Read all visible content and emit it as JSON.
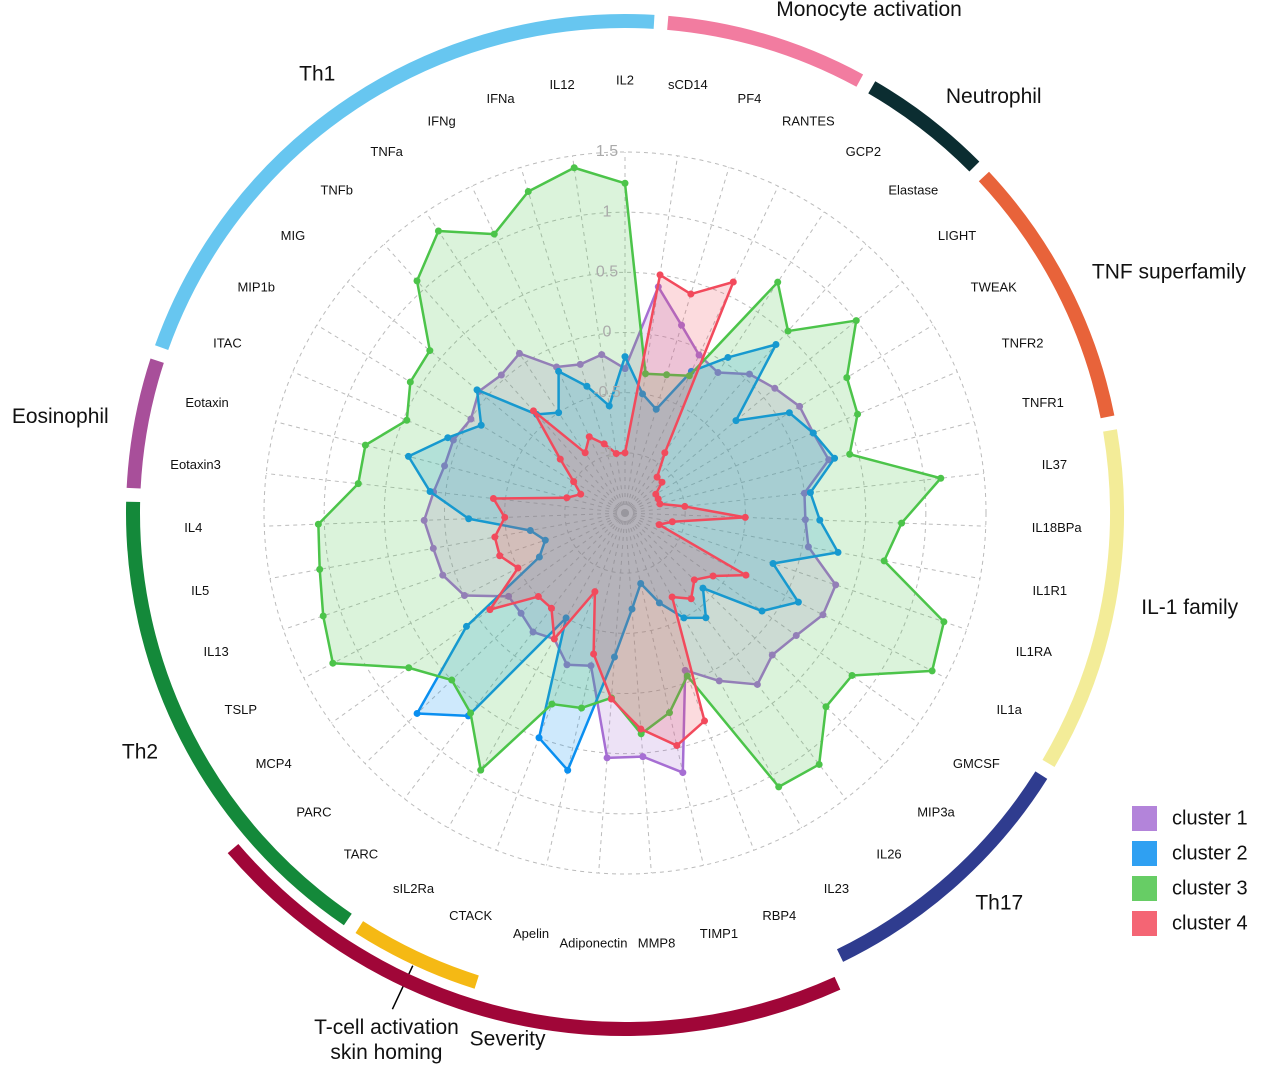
{
  "chart_data": {
    "type": "radar",
    "categories": [
      "IL2",
      "sCD14",
      "PF4",
      "RANTES",
      "GCP2",
      "Elastase",
      "LIGHT",
      "TWEAK",
      "TNFR2",
      "TNFR1",
      "IL37",
      "IL18BPa",
      "IL1R1",
      "IL1RA",
      "IL1a",
      "GMCSF",
      "MIP3a",
      "IL26",
      "IL23",
      "RBP4",
      "TIMP1",
      "MMP8",
      "Adiponectin",
      "Apelin",
      "CTACK",
      "sIL2Ra",
      "TARC",
      "PARC",
      "MCP4",
      "TSLP",
      "IL13",
      "IL5",
      "IL4",
      "Eotaxin3",
      "Eotaxin",
      "ITAC",
      "MIP1b",
      "MIG",
      "TNFb",
      "TNFa",
      "IFNg",
      "IFNa",
      "IL12"
    ],
    "series": [
      {
        "name": "cluster 1",
        "color": "#a66ed3",
        "values": [
          -0.3,
          0.4,
          0.13,
          -0.05,
          -0.1,
          0.05,
          0.12,
          0.2,
          0.2,
          0.25,
          0.0,
          0.0,
          0.05,
          0.35,
          0.35,
          0.25,
          0.2,
          0.3,
          0.1,
          -0.1,
          0.71,
          0.53,
          0.54,
          -0.2,
          -0.15,
          -0.3,
          -0.25,
          -0.3,
          -0.31,
          0.0,
          0.1,
          0.12,
          0.17,
          0.1,
          0.05,
          0.05,
          0.0,
          0.08,
          0.04,
          0.09,
          -0.16,
          -0.21,
          -0.17
        ]
      },
      {
        "name": "cluster 2",
        "color": "#0a8ff0",
        "values": [
          -0.2,
          -0.5,
          -0.6,
          -0.2,
          0.05,
          0.38,
          -0.3,
          0.1,
          0.2,
          0.3,
          0.05,
          0.12,
          0.3,
          -0.2,
          0.12,
          -0.1,
          -0.6,
          -0.4,
          -0.5,
          -0.7,
          -0.9,
          -0.7,
          -0.3,
          0.69,
          0.5,
          -0.5,
          0.63,
          0.9,
          0.12,
          -0.7,
          -0.8,
          -0.7,
          -0.2,
          0.13,
          0.36,
          0.1,
          -0.1,
          0.1,
          -0.4,
          -0.5,
          -0.2,
          -0.4,
          -0.6
        ]
      },
      {
        "name": "cluster 3",
        "color": "#4cc44a",
        "values": [
          1.24,
          -0.33,
          -0.3,
          -0.24,
          0.8,
          0.53,
          1.0,
          0.66,
          0.6,
          0.43,
          1.14,
          0.8,
          0.69,
          1.3,
          1.37,
          0.82,
          0.82,
          1.14,
          1.11,
          -0.05,
          0.2,
          0.34,
          0.04,
          0.16,
          0.2,
          0.95,
          0.6,
          0.5,
          0.71,
          1.23,
          1.15,
          1.08,
          1.05,
          0.73,
          0.73,
          0.47,
          0.59,
          0.61,
          1.09,
          1.31,
          1.06,
          1.29,
          1.4
        ]
      },
      {
        "name": "cluster 4",
        "color": "#f24a5c",
        "values": [
          -1.0,
          0.5,
          0.4,
          0.62,
          -0.9,
          -1.1,
          -1.1,
          -1.2,
          -1.2,
          -1.2,
          -1.0,
          -0.5,
          -1.1,
          -1.2,
          -0.37,
          -0.6,
          -0.7,
          -0.6,
          -0.7,
          0.35,
          0.48,
          0.3,
          0.05,
          -0.3,
          -0.8,
          -0.3,
          -0.5,
          -0.5,
          -0.12,
          -0.5,
          -0.4,
          -0.4,
          -0.5,
          -0.4,
          -1.0,
          -1.1,
          -1.0,
          -0.8,
          -0.36,
          -0.9,
          -0.8,
          -0.9,
          -1.0
        ]
      }
    ],
    "ylim": [
      -1.5,
      1.5
    ],
    "yticks": [
      -1,
      -0.5,
      0,
      0.5,
      1,
      1.5
    ],
    "grid": true,
    "legend": "lower right",
    "groups": [
      {
        "name": "Monocyte activation",
        "color": "#f27ca0",
        "members": [
          "sCD14",
          "PF4",
          "RANTES"
        ]
      },
      {
        "name": "Neutrophil",
        "color": "#0b2d31",
        "members": [
          "GCP2",
          "Elastase"
        ]
      },
      {
        "name": "TNF superfamily",
        "color": "#e8633a",
        "members": [
          "LIGHT",
          "TWEAK",
          "TNFR2",
          "TNFR1"
        ]
      },
      {
        "name": "IL-1 family",
        "color": "#f3ec98",
        "members": [
          "IL37",
          "IL18BPa",
          "IL1R1",
          "IL1RA",
          "IL1a"
        ]
      },
      {
        "name": "Th17",
        "color": "#2f3c8f",
        "members": [
          "GMCSF",
          "MIP3a",
          "IL26",
          "IL23"
        ]
      },
      {
        "name": "T-cell activation\nskin homing",
        "color": "#f5b914",
        "members": [
          "CTACK",
          "sIL2Ra"
        ]
      },
      {
        "name": "Th2",
        "color": "#14893a",
        "members": [
          "TARC",
          "PARC",
          "MCP4",
          "TSLP",
          "IL13",
          "IL5",
          "IL4"
        ]
      },
      {
        "name": "Eosinophil",
        "color": "#a84f9a",
        "members": [
          "Eotaxin3",
          "Eotaxin"
        ]
      },
      {
        "name": "Th1",
        "color": "#67c6f0",
        "members": [
          "ITAC",
          "MIP1b",
          "MIG",
          "TNFb",
          "TNFa",
          "IFNg",
          "IFNa",
          "IL12",
          "IL2"
        ]
      },
      {
        "name": "Severity",
        "color": "#a00638",
        "members": [
          "RBP4",
          "TIMP1",
          "MMP8",
          "Adiponectin",
          "Apelin",
          "CTACK",
          "sIL2Ra",
          "TARC",
          "PARC"
        ]
      }
    ]
  }
}
